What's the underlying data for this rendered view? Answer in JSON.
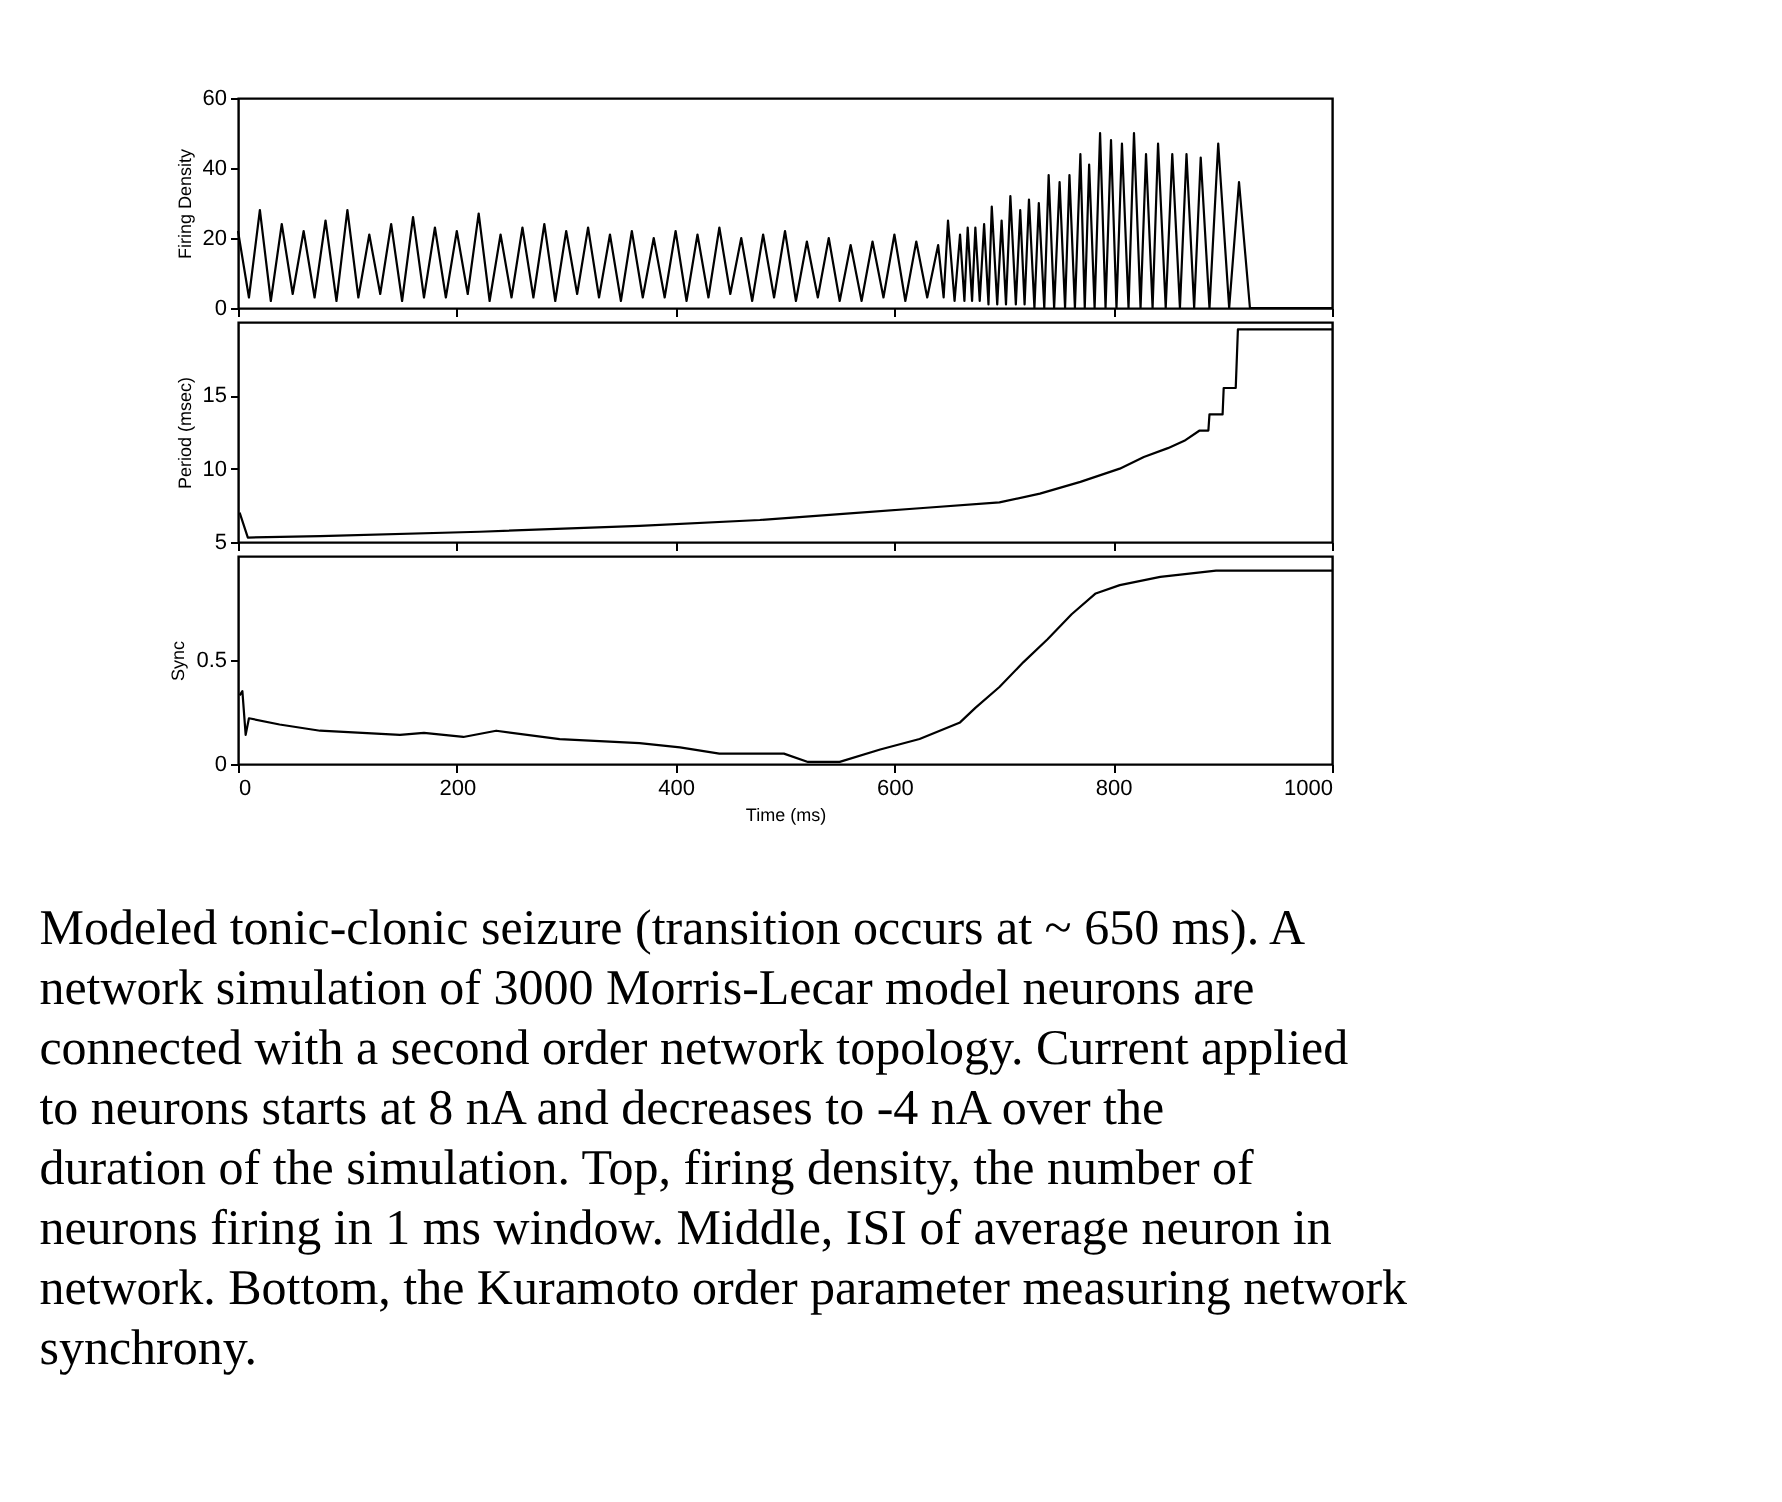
{
  "chart_data": [
    {
      "type": "line",
      "ylabel": "Firing Density",
      "xlim": [
        0,
        1000
      ],
      "xticks": [
        0,
        200,
        400,
        600,
        800,
        1000
      ],
      "ylim": [
        0,
        60
      ],
      "yticks": [
        0,
        20,
        40,
        60
      ],
      "tick_labels": "y",
      "x": [
        0,
        10,
        20,
        30,
        40,
        50,
        60,
        70,
        80,
        90,
        100,
        110,
        120,
        130,
        140,
        150,
        160,
        170,
        180,
        190,
        200,
        210,
        220,
        230,
        240,
        250,
        260,
        270,
        280,
        290,
        300,
        310,
        320,
        330,
        340,
        350,
        360,
        370,
        380,
        390,
        400,
        410,
        420,
        430,
        440,
        450,
        460,
        470,
        480,
        490,
        500,
        510,
        520,
        530,
        540,
        550,
        560,
        570,
        580,
        590,
        600,
        610,
        620,
        630,
        640,
        645,
        649,
        655,
        660,
        664,
        667,
        671,
        674,
        678,
        682,
        686,
        689,
        694,
        698,
        702,
        706,
        711,
        715,
        719,
        723,
        728,
        732,
        737,
        741,
        746,
        751,
        756,
        760,
        765,
        770,
        774,
        778,
        783,
        788,
        793,
        798,
        803,
        808,
        814,
        819,
        825,
        830,
        836,
        841,
        848,
        854,
        861,
        867,
        874,
        880,
        888,
        896,
        906,
        915,
        925,
        1000
      ],
      "series": [
        {
          "color": "#000000",
          "values": [
            22,
            3,
            28,
            2,
            24,
            4,
            22,
            3,
            25,
            2,
            28,
            3,
            21,
            4,
            24,
            2,
            26,
            3,
            23,
            3,
            22,
            4,
            27,
            2,
            21,
            3,
            23,
            3,
            24,
            2,
            22,
            4,
            23,
            3,
            21,
            2,
            22,
            3,
            20,
            3,
            22,
            2,
            21,
            3,
            23,
            4,
            20,
            2,
            21,
            3,
            22,
            2,
            19,
            3,
            20,
            2,
            18,
            2,
            19,
            3,
            21,
            2,
            19,
            3,
            18,
            3,
            25,
            2,
            21,
            2,
            23,
            2,
            23,
            2,
            24,
            1,
            29,
            1,
            25,
            1,
            32,
            1,
            28,
            1,
            31,
            0,
            30,
            0,
            38,
            0,
            36,
            0,
            38,
            0,
            44,
            0,
            41,
            0,
            50,
            0,
            48,
            0,
            47,
            0,
            50,
            0,
            44,
            0,
            47,
            0,
            44,
            0,
            44,
            0,
            43,
            0,
            47,
            0,
            36,
            0,
            0
          ]
        }
      ]
    },
    {
      "type": "line",
      "ylabel": "Period (msec)",
      "xlim": [
        0,
        1000
      ],
      "xticks": [
        0,
        200,
        400,
        600,
        800,
        1000
      ],
      "ylim": [
        5,
        20
      ],
      "yticks": [
        5,
        10,
        15
      ],
      "tick_labels": "y",
      "x": [
        1.5,
        9,
        75,
        221,
        367,
        477,
        550,
        623,
        696,
        733,
        770,
        806,
        828,
        850,
        865,
        879,
        887,
        888,
        900,
        901,
        912,
        914,
        1000
      ],
      "series": [
        {
          "color": "#000000",
          "values": [
            7.0,
            5.3,
            5.4,
            5.7,
            6.1,
            6.5,
            6.9,
            7.3,
            7.7,
            8.3,
            9.1,
            10.0,
            10.8,
            11.4,
            11.9,
            12.6,
            12.6,
            13.7,
            13.7,
            15.5,
            15.5,
            19.5,
            19.5
          ]
        }
      ]
    },
    {
      "type": "line",
      "ylabel": "Sync",
      "xlabel": "Time (ms)",
      "xlim": [
        0,
        1000
      ],
      "xticks": [
        0,
        200,
        400,
        600,
        800,
        1000
      ],
      "ylim": [
        0,
        1
      ],
      "yticks": [
        0,
        0.5
      ],
      "x": [
        1.5,
        4,
        7,
        10,
        38,
        75,
        148,
        170,
        206,
        236,
        294,
        367,
        404,
        440,
        499,
        521,
        550,
        587,
        623,
        660,
        674,
        696,
        718,
        740,
        762,
        784,
        806,
        843,
        894,
        919,
        1000
      ],
      "series": [
        {
          "color": "#000000",
          "values": [
            0.33,
            0.35,
            0.14,
            0.22,
            0.19,
            0.16,
            0.14,
            0.15,
            0.13,
            0.16,
            0.12,
            0.1,
            0.08,
            0.05,
            0.05,
            0.01,
            0.01,
            0.07,
            0.12,
            0.2,
            0.27,
            0.37,
            0.49,
            0.6,
            0.72,
            0.82,
            0.86,
            0.9,
            0.93,
            0.93,
            0.93
          ]
        }
      ],
      "annotations": [
        "Modeled tonic-clonic seizure (transition occurs at ~ 650 ms).  A network simulation of 3000 Morris-Lecar model neurons are connected with a second order network topology.  Current applied to neurons starts at 8 nA and decreases to -4 nA over the duration of the simulation. Top, firing density, the number of neurons firing in 1 ms window.  Middle, ISI of average neuron in network. Bottom, the Kuramoto order parameter measuring network synchrony."
      ]
    }
  ]
}
